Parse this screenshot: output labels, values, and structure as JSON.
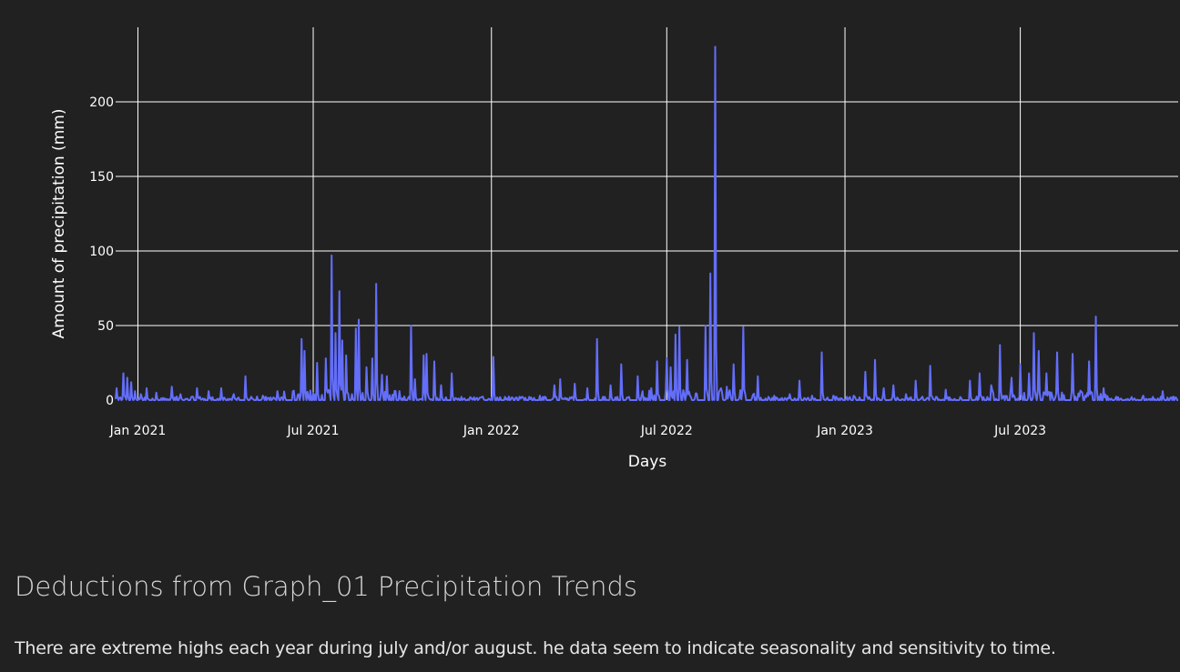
{
  "chart_data": {
    "type": "line",
    "title": "",
    "xlabel": "Days",
    "ylabel": "Amount of precipitation (mm)",
    "x_range": [
      "2020-12-09",
      "2023-12-11"
    ],
    "ylim": [
      0,
      250
    ],
    "grid": true,
    "line_color": "#636efa",
    "background_color": "#212121",
    "x_ticks": [
      {
        "date": "2021-01-01",
        "label": "Jan 2021"
      },
      {
        "date": "2021-07-01",
        "label": "Jul 2021"
      },
      {
        "date": "2022-01-01",
        "label": "Jan 2022"
      },
      {
        "date": "2022-07-01",
        "label": "Jul 2022"
      },
      {
        "date": "2023-01-01",
        "label": "Jan 2023"
      },
      {
        "date": "2023-07-01",
        "label": "Jul 2023"
      }
    ],
    "y_ticks": [
      0,
      50,
      100,
      150,
      200
    ],
    "series": [
      {
        "name": "Precipitation",
        "peaks": [
          [
            "2020-12-10",
            8
          ],
          [
            "2020-12-17",
            18
          ],
          [
            "2020-12-21",
            15
          ],
          [
            "2020-12-25",
            12
          ],
          [
            "2020-12-29",
            6
          ],
          [
            "2021-01-04",
            4
          ],
          [
            "2021-01-10",
            8
          ],
          [
            "2021-01-20",
            5
          ],
          [
            "2021-02-05",
            9
          ],
          [
            "2021-02-14",
            4
          ],
          [
            "2021-03-03",
            8
          ],
          [
            "2021-03-15",
            6
          ],
          [
            "2021-03-28",
            8
          ],
          [
            "2021-04-10",
            4
          ],
          [
            "2021-04-22",
            16
          ],
          [
            "2021-05-10",
            3
          ],
          [
            "2021-05-25",
            6
          ],
          [
            "2021-06-10",
            6
          ],
          [
            "2021-06-19",
            41
          ],
          [
            "2021-06-22",
            33
          ],
          [
            "2021-07-05",
            25
          ],
          [
            "2021-07-14",
            28
          ],
          [
            "2021-07-20",
            97
          ],
          [
            "2021-07-24",
            45
          ],
          [
            "2021-07-28",
            73
          ],
          [
            "2021-07-31",
            40
          ],
          [
            "2021-08-04",
            30
          ],
          [
            "2021-08-14",
            48
          ],
          [
            "2021-08-17",
            54
          ],
          [
            "2021-08-25",
            22
          ],
          [
            "2021-08-31",
            28
          ],
          [
            "2021-09-04",
            78
          ],
          [
            "2021-09-10",
            17
          ],
          [
            "2021-09-15",
            16
          ],
          [
            "2021-09-28",
            6
          ],
          [
            "2021-10-10",
            50
          ],
          [
            "2021-10-14",
            14
          ],
          [
            "2021-10-23",
            30
          ],
          [
            "2021-10-26",
            31
          ],
          [
            "2021-11-03",
            26
          ],
          [
            "2021-11-10",
            10
          ],
          [
            "2021-11-21",
            18
          ],
          [
            "2021-12-10",
            2
          ],
          [
            "2021-12-22",
            2
          ],
          [
            "2022-01-03",
            29
          ],
          [
            "2022-02-01",
            2
          ],
          [
            "2022-02-20",
            3
          ],
          [
            "2022-03-07",
            10
          ],
          [
            "2022-03-13",
            14
          ],
          [
            "2022-03-28",
            11
          ],
          [
            "2022-04-10",
            8
          ],
          [
            "2022-04-20",
            41
          ],
          [
            "2022-05-04",
            10
          ],
          [
            "2022-05-15",
            24
          ],
          [
            "2022-06-01",
            16
          ],
          [
            "2022-06-15",
            8
          ],
          [
            "2022-06-21",
            26
          ],
          [
            "2022-07-01",
            28
          ],
          [
            "2022-07-05",
            22
          ],
          [
            "2022-07-10",
            44
          ],
          [
            "2022-07-14",
            49
          ],
          [
            "2022-07-22",
            27
          ],
          [
            "2022-08-10",
            50
          ],
          [
            "2022-08-15",
            85
          ],
          [
            "2022-08-20",
            237
          ],
          [
            "2022-08-26",
            8
          ],
          [
            "2022-09-01",
            9
          ],
          [
            "2022-09-08",
            24
          ],
          [
            "2022-09-18",
            49
          ],
          [
            "2022-10-03",
            16
          ],
          [
            "2022-10-20",
            3
          ],
          [
            "2022-11-05",
            4
          ],
          [
            "2022-11-15",
            13
          ],
          [
            "2022-11-28",
            3
          ],
          [
            "2022-12-08",
            32
          ],
          [
            "2022-12-20",
            3
          ],
          [
            "2023-01-10",
            3
          ],
          [
            "2023-01-22",
            19
          ],
          [
            "2023-02-01",
            27
          ],
          [
            "2023-02-10",
            8
          ],
          [
            "2023-02-20",
            10
          ],
          [
            "2023-03-05",
            4
          ],
          [
            "2023-03-15",
            13
          ],
          [
            "2023-03-30",
            23
          ],
          [
            "2023-04-15",
            7
          ],
          [
            "2023-05-10",
            13
          ],
          [
            "2023-05-20",
            18
          ],
          [
            "2023-06-01",
            10
          ],
          [
            "2023-06-10",
            37
          ],
          [
            "2023-06-22",
            15
          ],
          [
            "2023-07-01",
            24
          ],
          [
            "2023-07-10",
            18
          ],
          [
            "2023-07-15",
            45
          ],
          [
            "2023-07-20",
            33
          ],
          [
            "2023-07-28",
            18
          ],
          [
            "2023-08-08",
            32
          ],
          [
            "2023-08-24",
            31
          ],
          [
            "2023-09-10",
            26
          ],
          [
            "2023-09-17",
            56
          ],
          [
            "2023-09-25",
            8
          ],
          [
            "2023-10-10",
            2
          ],
          [
            "2023-11-05",
            3
          ],
          [
            "2023-11-25",
            6
          ]
        ]
      }
    ]
  },
  "text": {
    "heading": "Deductions from Graph_01 Precipitation Trends",
    "paragraph": "There are extreme highs each year during july and/or august. he data seem to indicate seasonality and sensitivity to time."
  }
}
